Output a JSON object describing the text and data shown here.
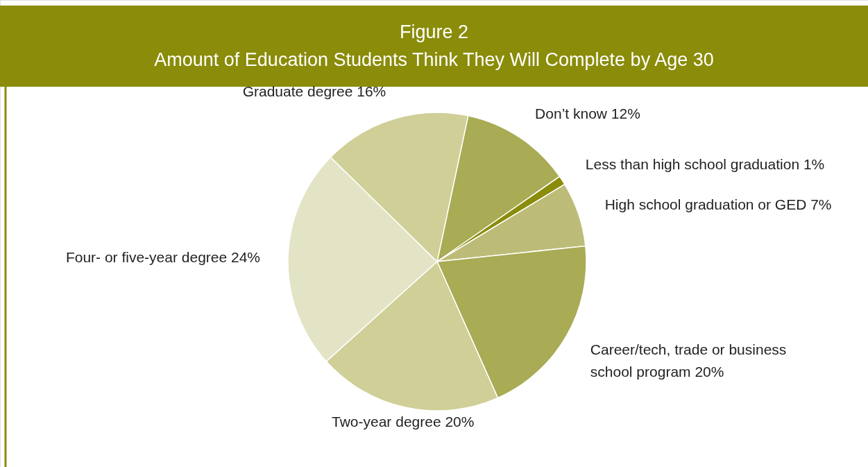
{
  "chart_data": {
    "type": "pie",
    "title": "Figure 2",
    "subtitle": "Amount of Education Students Think They Will Complete by Age 30",
    "categories": [
      "Don’t know",
      "Less than high school graduation",
      "High school graduation or GED",
      "Career/tech, trade or business school program",
      "Two-year degree",
      "Four- or five-year degree",
      "Graduate degree"
    ],
    "values": [
      12,
      1,
      7,
      20,
      20,
      24,
      16
    ],
    "value_labels": [
      "12%",
      "1%",
      "7%",
      "20%",
      "20%",
      "24%",
      "16%"
    ],
    "colors": [
      "#a9ab55",
      "#8a8c0a",
      "#bcbc78",
      "#a9ab55",
      "#cfcf97",
      "#e3e3c6",
      "#cfcf97"
    ]
  }
}
